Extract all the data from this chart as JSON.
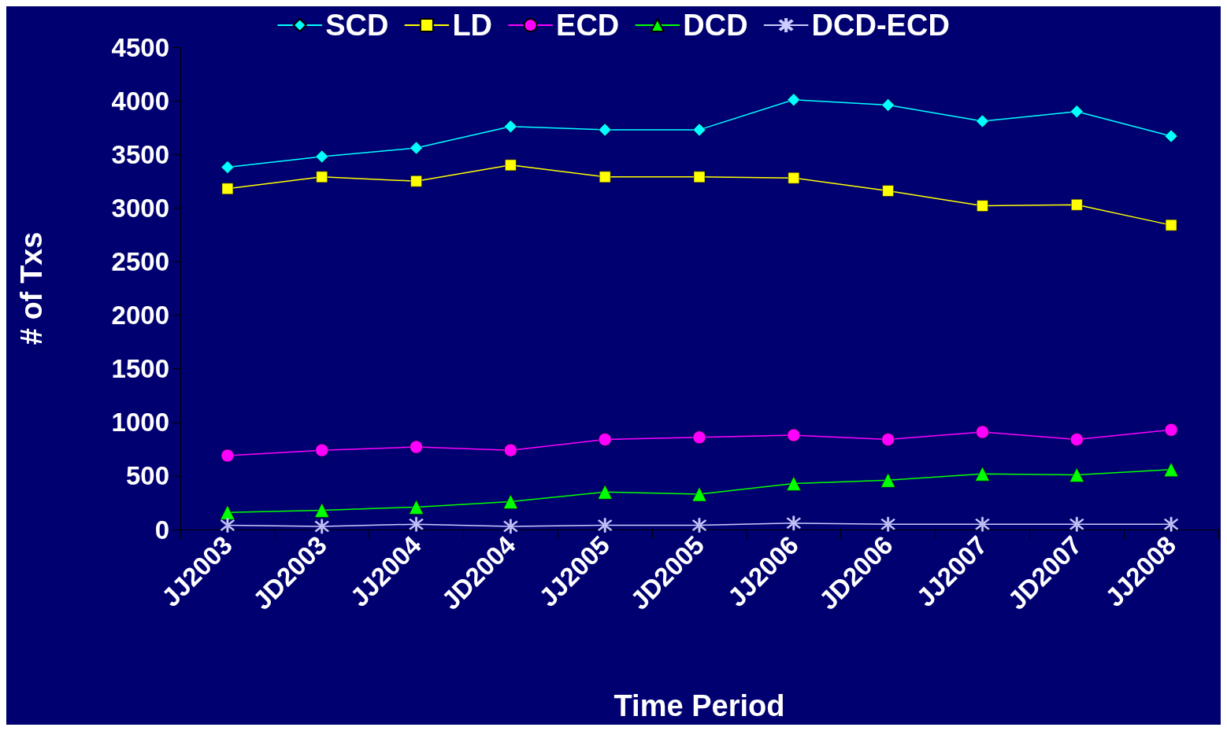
{
  "chart_data": {
    "type": "line",
    "xlabel": "Time Period",
    "ylabel": "# of Txs",
    "categories": [
      "JJ2003",
      "JD2003",
      "JJ2004",
      "JD2004",
      "JJ2005",
      "JD2005",
      "JJ2006",
      "JD2006",
      "JJ2007",
      "JD2007",
      "JJ2008"
    ],
    "series": [
      {
        "name": "SCD",
        "color": "#00ffff",
        "marker": "diamond",
        "values": [
          3380,
          3480,
          3560,
          3760,
          3730,
          3730,
          4010,
          3960,
          3810,
          3900,
          3670
        ]
      },
      {
        "name": "LD",
        "color": "#ffff00",
        "marker": "square",
        "values": [
          3180,
          3290,
          3250,
          3400,
          3290,
          3290,
          3280,
          3160,
          3020,
          3030,
          2840
        ]
      },
      {
        "name": "ECD",
        "color": "#ff00ff",
        "marker": "circle",
        "values": [
          690,
          740,
          770,
          740,
          840,
          860,
          880,
          840,
          910,
          840,
          930
        ]
      },
      {
        "name": "DCD",
        "color": "#00ff00",
        "marker": "triangle",
        "values": [
          160,
          180,
          210,
          260,
          350,
          330,
          430,
          460,
          520,
          510,
          560
        ]
      },
      {
        "name": "DCD-ECD",
        "color": "#ccccff",
        "marker": "cross",
        "values": [
          40,
          30,
          50,
          30,
          40,
          40,
          60,
          50,
          50,
          50,
          50
        ]
      }
    ],
    "ylim": [
      0,
      4500
    ],
    "yticks": [
      0,
      500,
      1000,
      1500,
      2000,
      2500,
      3000,
      3500,
      4000,
      4500
    ],
    "grid": false,
    "legend": "top",
    "line_style": "solid"
  }
}
